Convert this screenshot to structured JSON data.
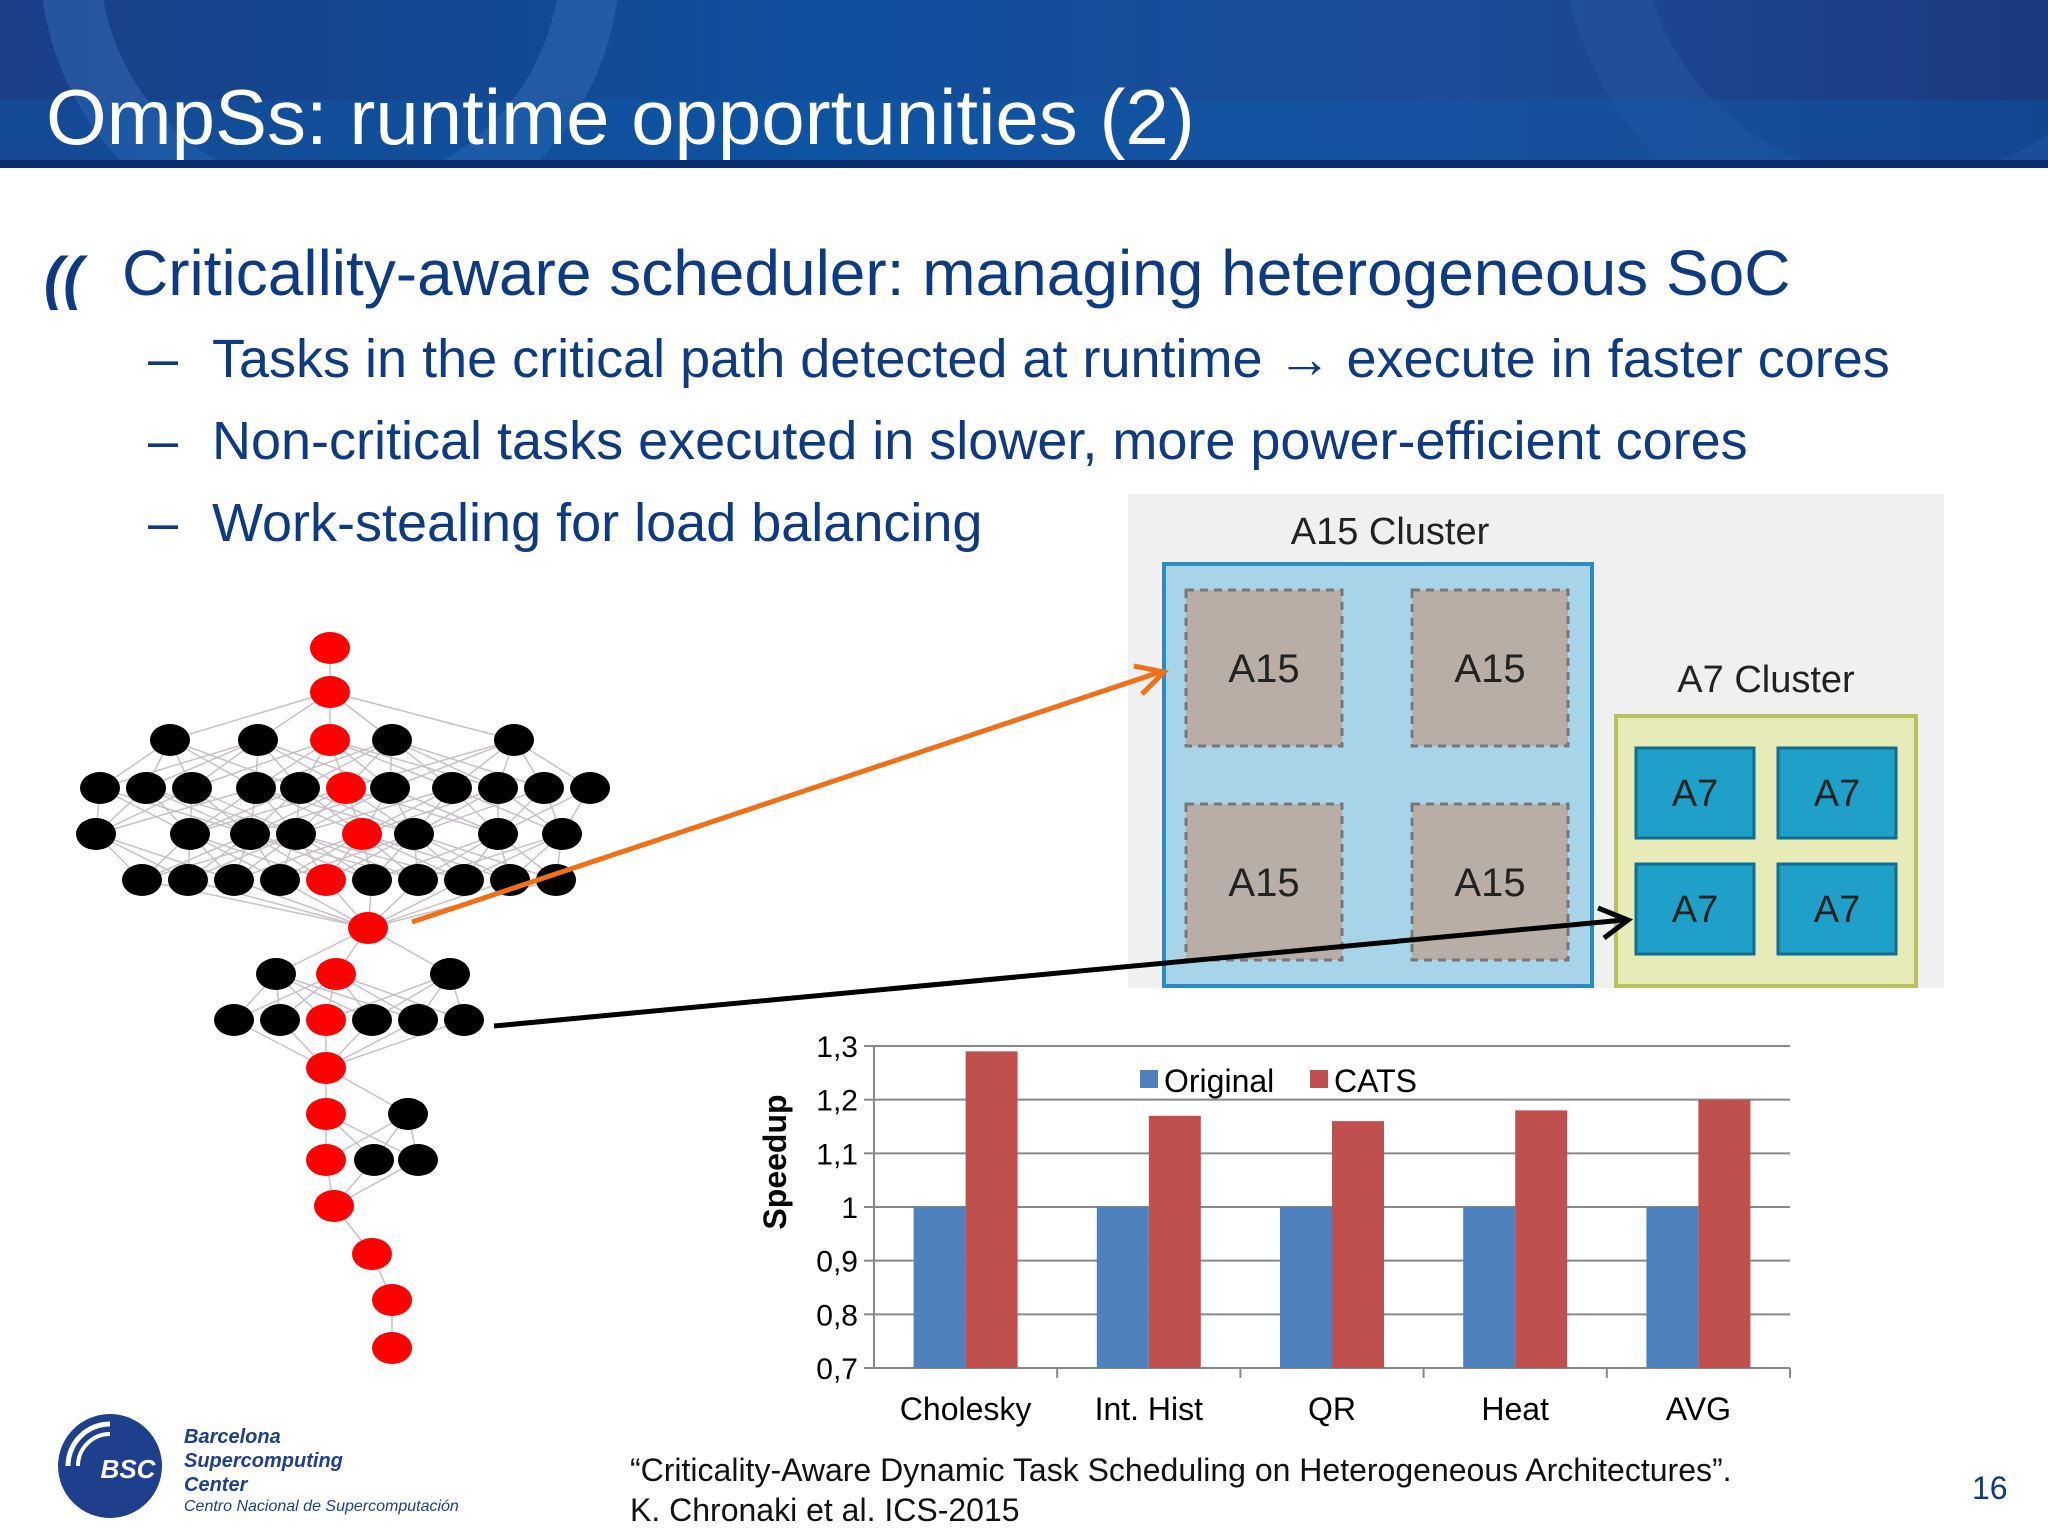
{
  "slide": {
    "title": "OmpSs: runtime opportunities (2)",
    "bullet_icon": "((",
    "bullet": "Criticallity-aware scheduler: managing heterogeneous SoC",
    "sub_bullets": [
      "Tasks in the critical path detected at runtime → execute in faster cores",
      "Non-critical tasks executed in slower, more power-efficient cores",
      "Work-stealing for load balancing"
    ],
    "dash": "–",
    "page_number": "16",
    "citation": [
      "“Criticality-Aware Dynamic Task Scheduling on Heterogeneous Architectures”.",
      "K. Chronaki et al. ICS-2015"
    ]
  },
  "logo": {
    "abbr": "BSC",
    "name_lines": [
      "Barcelona",
      "Supercomputing",
      "Center"
    ],
    "subtitle": "Centro Nacional de Supercomputación"
  },
  "diagram": {
    "a15_cluster_label": "A15 Cluster",
    "a15_core_label": "A15",
    "a7_cluster_label": "A7 Cluster",
    "a7_core_label": "A7",
    "colors": {
      "critical_node": "#ff0000",
      "normal_node": "#000000",
      "orange_arrow": "#f07018",
      "black_arrow": "#000000",
      "a15_cluster": "#a8d4ea",
      "a15_core": "#b8aea6",
      "a7_cluster": "#e6ebb8",
      "a7_core": "#1ea0c8"
    }
  },
  "chart_data": {
    "type": "bar",
    "categories": [
      "Cholesky",
      "Int. Hist",
      "QR",
      "Heat",
      "AVG"
    ],
    "series": [
      {
        "name": "Original",
        "values": [
          1,
          1,
          1,
          1,
          1
        ],
        "color": "#4f81bd"
      },
      {
        "name": "CATS",
        "values": [
          1.29,
          1.17,
          1.16,
          1.18,
          1.2
        ],
        "color": "#c0504d"
      }
    ],
    "ylabel": "Speedup",
    "ylim": [
      0.7,
      1.3
    ],
    "yticks": [
      "0,7",
      "0,8",
      "0,9",
      "1",
      "1,1",
      "1,2",
      "1,3"
    ],
    "grid": true,
    "legend": "top"
  }
}
